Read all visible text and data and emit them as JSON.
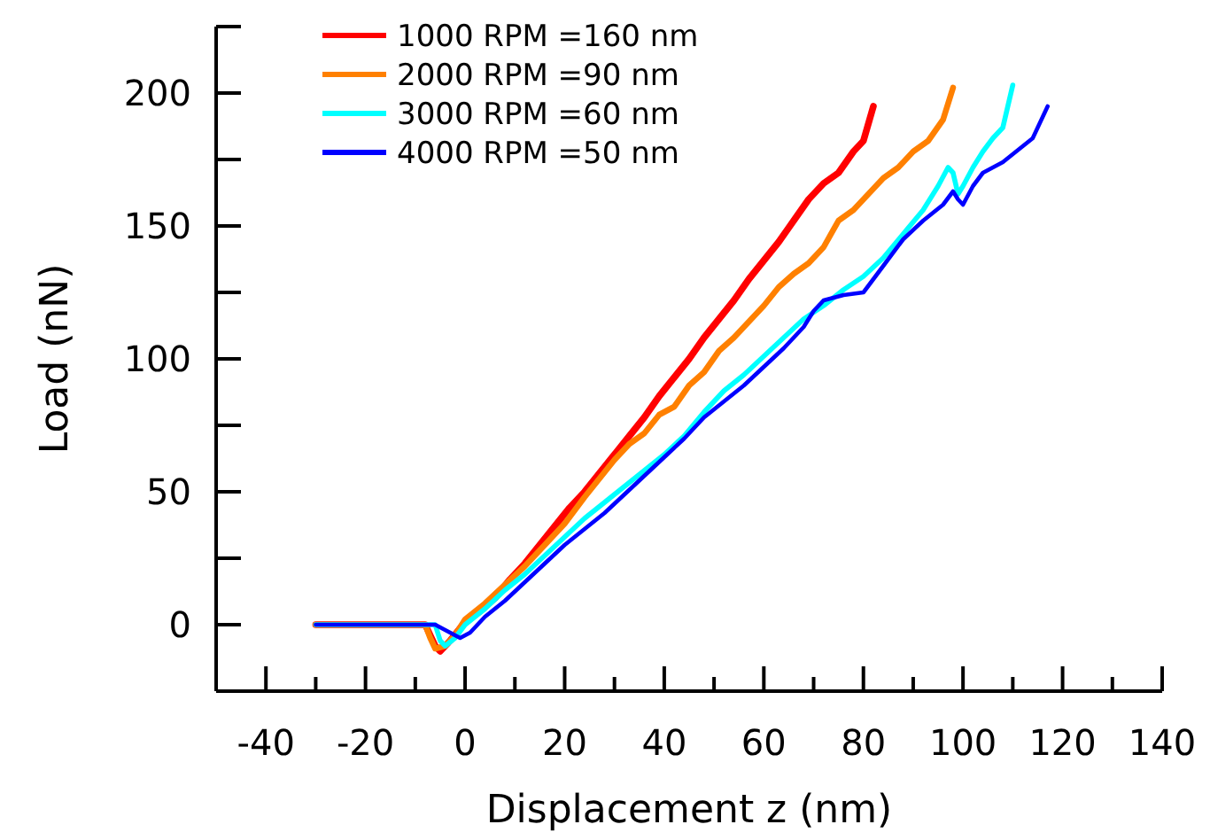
{
  "chart_data": {
    "type": "line",
    "xlabel": "Displacement z (nm)",
    "ylabel": "Load (nN)",
    "xlim": [
      -50,
      140
    ],
    "ylim": [
      -25,
      225
    ],
    "xticks": [
      {
        "value": -50,
        "label": null
      },
      -40,
      {
        "value": -30,
        "label": null
      },
      -20,
      {
        "value": -10,
        "label": null
      },
      0,
      {
        "value": 10,
        "label": null
      },
      20,
      {
        "value": 30,
        "label": null
      },
      40,
      {
        "value": 50,
        "label": null
      },
      60,
      {
        "value": 70,
        "label": null
      },
      80,
      {
        "value": 90,
        "label": null
      },
      100,
      {
        "value": 110,
        "label": null
      },
      120,
      {
        "value": 130,
        "label": null
      },
      140
    ],
    "yticks": [
      {
        "value": -25,
        "label": null
      },
      0,
      {
        "value": 25,
        "label": null
      },
      50,
      {
        "value": 75,
        "label": null
      },
      100,
      {
        "value": 125,
        "label": null
      },
      150,
      {
        "value": 175,
        "label": null
      },
      200,
      {
        "value": 225,
        "label": null
      }
    ],
    "grid": false,
    "legend": "top left",
    "line_style": "solid",
    "marker": "none",
    "series": [
      {
        "name": "1000 RPM =160 nm",
        "color": "#ff0000",
        "x": [
          -30,
          -10,
          -8,
          -6,
          -5,
          -3,
          0,
          3,
          6,
          9,
          12,
          15,
          18,
          21,
          24,
          27,
          30,
          33,
          36,
          39,
          42,
          45,
          48,
          51,
          54,
          57,
          60,
          63,
          66,
          69,
          72,
          75,
          78,
          80,
          82
        ],
        "values": [
          0,
          0,
          0,
          -8,
          -10,
          -6,
          1,
          5,
          10,
          17,
          23,
          30,
          37,
          44,
          50,
          57,
          64,
          71,
          78,
          86,
          93,
          100,
          108,
          115,
          122,
          130,
          137,
          144,
          152,
          160,
          166,
          170,
          178,
          182,
          195
        ]
      },
      {
        "name": "2000 RPM =90 nm",
        "color": "#ff8000",
        "x": [
          -30,
          -8,
          -7,
          -6,
          -4,
          -2,
          0,
          4,
          8,
          12,
          16,
          20,
          24,
          27,
          30,
          33,
          36,
          39,
          42,
          45,
          48,
          51,
          54,
          57,
          60,
          63,
          66,
          69,
          72,
          75,
          78,
          81,
          84,
          87,
          90,
          93,
          96,
          98
        ],
        "values": [
          0,
          0,
          -5,
          -9,
          -8,
          -4,
          2,
          8,
          15,
          22,
          30,
          38,
          48,
          55,
          62,
          68,
          72,
          79,
          82,
          90,
          95,
          103,
          108,
          114,
          120,
          127,
          132,
          136,
          142,
          152,
          156,
          162,
          168,
          172,
          178,
          182,
          190,
          202
        ]
      },
      {
        "name": "3000 RPM =60 nm",
        "color": "#00ffff",
        "x": [
          -30,
          -6,
          -5,
          -4,
          -2,
          0,
          4,
          8,
          12,
          16,
          20,
          24,
          28,
          32,
          36,
          40,
          44,
          48,
          52,
          56,
          60,
          64,
          68,
          72,
          76,
          80,
          84,
          88,
          92,
          95,
          97,
          98,
          99,
          100,
          102,
          104,
          106,
          108,
          110
        ],
        "values": [
          0,
          0,
          -6,
          -8,
          -5,
          0,
          6,
          13,
          19,
          26,
          33,
          40,
          46,
          52,
          58,
          64,
          71,
          80,
          88,
          94,
          101,
          108,
          115,
          120,
          126,
          131,
          138,
          147,
          156,
          165,
          172,
          170,
          162,
          165,
          172,
          178,
          183,
          187,
          203
        ]
      },
      {
        "name": "4000 RPM =50 nm",
        "color": "#0000ff",
        "x": [
          -30,
          -6,
          -3,
          -1,
          1,
          4,
          8,
          12,
          16,
          20,
          24,
          28,
          32,
          36,
          40,
          44,
          48,
          52,
          56,
          60,
          64,
          68,
          70,
          72,
          76,
          80,
          84,
          88,
          92,
          96,
          98,
          99,
          100,
          102,
          104,
          108,
          112,
          114,
          117
        ],
        "values": [
          0,
          0,
          -3,
          -5,
          -3,
          3,
          9,
          16,
          23,
          30,
          36,
          42,
          49,
          56,
          63,
          70,
          78,
          84,
          90,
          97,
          104,
          112,
          118,
          122,
          124,
          125,
          135,
          145,
          152,
          158,
          163,
          160,
          158,
          165,
          170,
          174,
          180,
          183,
          195
        ]
      }
    ]
  }
}
